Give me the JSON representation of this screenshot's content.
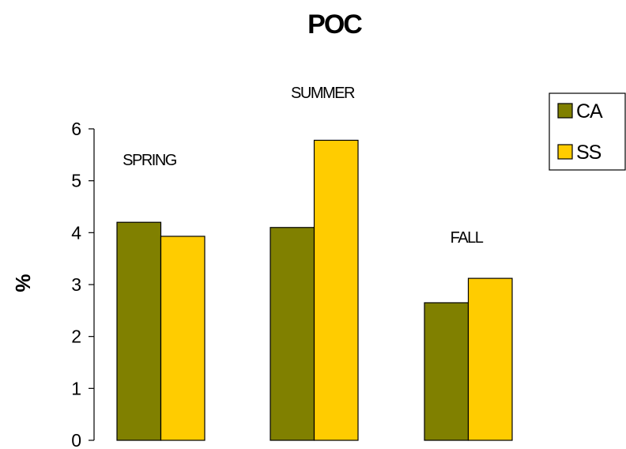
{
  "chart_data": {
    "type": "bar",
    "title": "POC",
    "ylabel": "%",
    "xlabel": "",
    "ylim": [
      0,
      6
    ],
    "yticks": [
      "0",
      "1",
      "2",
      "3",
      "4",
      "5",
      "6"
    ],
    "categories": [
      "SPRING",
      "SUMMER",
      "FALL"
    ],
    "series": [
      {
        "name": "CA",
        "values": [
          4.2,
          4.1,
          2.65
        ],
        "color": "#808000"
      },
      {
        "name": "SS",
        "values": [
          3.93,
          5.78,
          3.12
        ],
        "color": "#FFCC00"
      }
    ],
    "grid": false,
    "legend": "top-right"
  }
}
